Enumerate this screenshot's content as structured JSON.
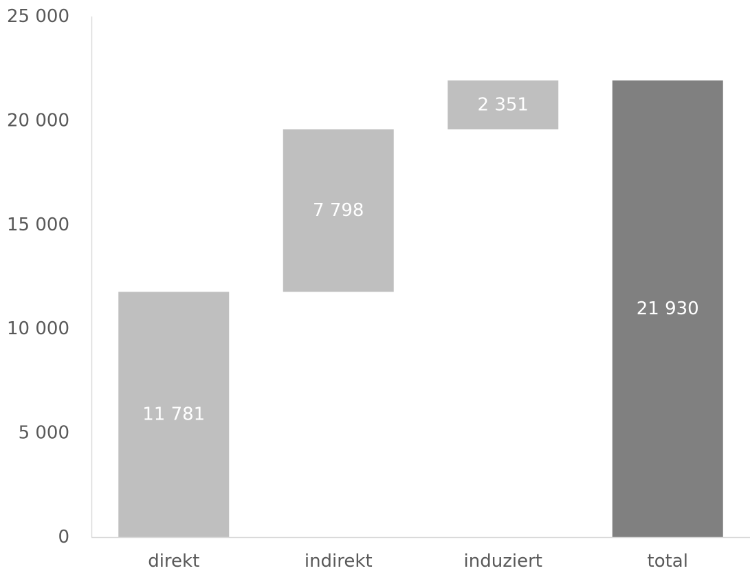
{
  "chart_data": {
    "type": "bar",
    "subtype": "waterfall",
    "title": "",
    "xlabel": "",
    "ylabel": "",
    "categories": [
      "direkt",
      "indirekt",
      "induziert",
      "total"
    ],
    "values": [
      11781,
      7798,
      2351,
      21930
    ],
    "bases": [
      0,
      11781,
      19579,
      0
    ],
    "value_labels": [
      "11 781",
      "7 798",
      "2 351",
      "21 930"
    ],
    "bar_colors": [
      "#bfbfbf",
      "#bfbfbf",
      "#bfbfbf",
      "#808080"
    ],
    "ylim": [
      0,
      25000
    ],
    "yticks": [
      0,
      5000,
      10000,
      15000,
      20000,
      25000
    ],
    "ytick_labels": [
      "0",
      "5 000",
      "10 000",
      "15 000",
      "20 000",
      "25 000"
    ],
    "grid": false,
    "legend": "none",
    "axis_color": "#d9d9d9",
    "label_color": "#595959",
    "data_label_color": "#ffffff"
  }
}
